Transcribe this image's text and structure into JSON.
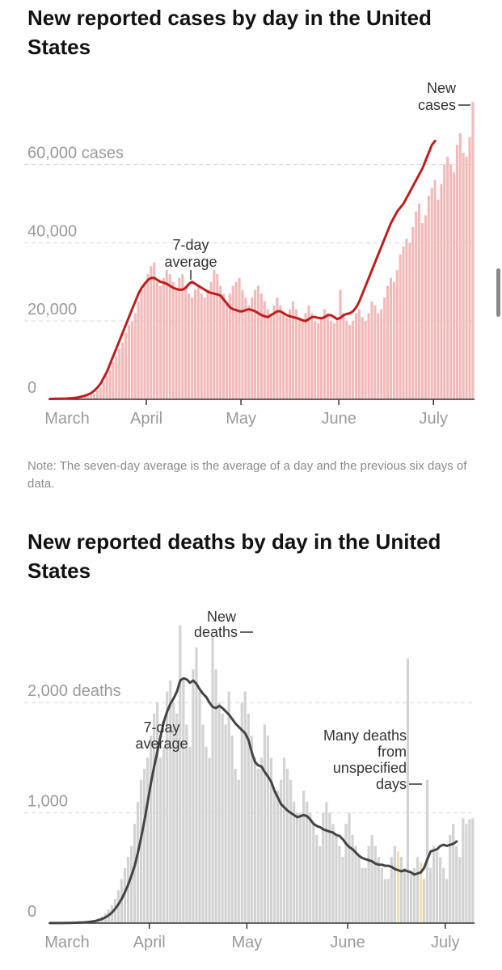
{
  "cases_chart": {
    "title": "New reported cases by day in the United States",
    "note": "Note: The seven-day average is the average of a day and the previous six days of data.",
    "y_tick_labels": [
      "60,000 cases",
      "40,000",
      "20,000",
      "0"
    ],
    "x_tick_labels": [
      "March",
      "April",
      "May",
      "June",
      "July"
    ],
    "annotation_new": [
      "New",
      "cases"
    ],
    "annotation_avg": [
      "7-day",
      "average"
    ],
    "colors": {
      "bar": "#f2b9b9",
      "line": "#bf1e1e",
      "grid": "#d8d8d8",
      "axis": "#333333"
    }
  },
  "deaths_chart": {
    "title": "New reported deaths by day in the United States",
    "y_tick_labels": [
      "2,000 deaths",
      "1,000",
      "0"
    ],
    "x_tick_labels": [
      "March",
      "April",
      "May",
      "June",
      "July"
    ],
    "annotation_new": [
      "New",
      "deaths"
    ],
    "annotation_avg": [
      "7-day",
      "average"
    ],
    "annotation_unspecified": [
      "Many deaths",
      "from",
      "unspecified",
      "days"
    ],
    "colors": {
      "bar": "#d3d3d3",
      "highlight": "#f5deb0",
      "line": "#444444",
      "grid": "#d8d8d8",
      "axis": "#333333"
    }
  },
  "chart_data": [
    {
      "type": "bar",
      "title": "New reported cases by day in the United States",
      "start_date": "2020-03-01",
      "end_date": "2020-07-15",
      "ylim": [
        0,
        76000
      ],
      "yticks": [
        0,
        20000,
        40000,
        60000
      ],
      "series": [
        {
          "name": "New cases",
          "type": "bar",
          "values": [
            10,
            20,
            30,
            40,
            60,
            80,
            100,
            150,
            200,
            300,
            450,
            600,
            800,
            1100,
            1500,
            2200,
            3000,
            4500,
            6000,
            7500,
            9500,
            11000,
            13000,
            14500,
            17000,
            19000,
            20000,
            22000,
            25000,
            28000,
            30000,
            32000,
            34000,
            35000,
            30000,
            29000,
            31000,
            33000,
            32000,
            30000,
            28000,
            31000,
            32000,
            29000,
            27000,
            26000,
            28000,
            29000,
            27000,
            26000,
            28000,
            30000,
            33000,
            32000,
            29000,
            27000,
            25000,
            27000,
            29000,
            30000,
            31000,
            28000,
            26000,
            24000,
            26000,
            28000,
            29000,
            27000,
            25000,
            23000,
            22000,
            24000,
            26000,
            24000,
            22000,
            21000,
            23000,
            25000,
            23000,
            21000,
            20000,
            22000,
            24000,
            22000,
            20000,
            19500,
            21000,
            23000,
            22000,
            20000,
            19500,
            21000,
            28000,
            22000,
            20000,
            19000,
            20000,
            22000,
            23000,
            21000,
            20000,
            22000,
            25000,
            24000,
            22000,
            23000,
            26000,
            29000,
            31000,
            30000,
            33000,
            37000,
            39000,
            41000,
            40000,
            44000,
            48000,
            50000,
            45000,
            47000,
            52000,
            54000,
            56000,
            51000,
            55000,
            60000,
            62000,
            60000,
            58000,
            65000,
            68000,
            63000,
            62000,
            67000,
            76000
          ]
        },
        {
          "name": "7-day average",
          "type": "line",
          "values": [
            100,
            120,
            140,
            160,
            180,
            200,
            250,
            300,
            400,
            500,
            700,
            900,
            1200,
            1600,
            2200,
            3000,
            4000,
            5500,
            7000,
            9000,
            11000,
            13000,
            15000,
            17000,
            19000,
            21000,
            23000,
            25000,
            27000,
            28500,
            29500,
            30500,
            31000,
            31000,
            30500,
            30000,
            29800,
            29500,
            29000,
            28500,
            28200,
            28000,
            28000,
            28500,
            29500,
            30000,
            29500,
            29000,
            28500,
            28000,
            27500,
            27200,
            27000,
            26800,
            26500,
            25500,
            24500,
            23500,
            23000,
            22800,
            22500,
            22500,
            22800,
            23000,
            22800,
            22500,
            22000,
            21500,
            21200,
            21000,
            21500,
            22000,
            22500,
            22500,
            22000,
            21500,
            21200,
            21000,
            20800,
            20500,
            20200,
            20000,
            20500,
            21000,
            21000,
            20800,
            20700,
            21000,
            21500,
            21500,
            21000,
            20500,
            20800,
            21500,
            21800,
            22000,
            22500,
            23500,
            25000,
            27000,
            29000,
            31000,
            33000,
            35000,
            37000,
            39000,
            41000,
            43000,
            45000,
            46500,
            48000,
            49000,
            50000,
            51500,
            53000,
            54500,
            56000,
            57500,
            59000,
            61000,
            63000,
            65000,
            66000
          ]
        }
      ]
    },
    {
      "type": "bar",
      "title": "New reported deaths by day in the United States",
      "start_date": "2020-03-01",
      "end_date": "2020-07-15",
      "ylim": [
        0,
        2800
      ],
      "yticks": [
        0,
        1000,
        2000
      ],
      "series": [
        {
          "name": "New deaths",
          "type": "bar",
          "values": [
            1,
            1,
            1,
            1,
            2,
            2,
            3,
            3,
            4,
            5,
            8,
            10,
            15,
            20,
            30,
            45,
            60,
            90,
            120,
            160,
            220,
            300,
            400,
            500,
            600,
            700,
            900,
            1100,
            1300,
            1400,
            1500,
            1700,
            1900,
            2000,
            1500,
            1600,
            2100,
            2200,
            2000,
            1900,
            2700,
            2200,
            1800,
            1600,
            2300,
            2500,
            2100,
            1800,
            1600,
            1500,
            2600,
            2300,
            2000,
            1900,
            1800,
            2100,
            1700,
            1400,
            1300,
            2000,
            2100,
            1900,
            1700,
            1500,
            1400,
            1500,
            1800,
            1700,
            1500,
            1200,
            1200,
            1300,
            1500,
            1400,
            1300,
            1100,
            1000,
            1000,
            1200,
            1100,
            1000,
            900,
            800,
            700,
            1000,
            1100,
            1000,
            900,
            800,
            700,
            600,
            900,
            1000,
            800,
            700,
            600,
            500,
            500,
            700,
            800,
            700,
            600,
            500,
            400,
            400,
            600,
            700,
            650,
            600,
            500,
            2400,
            450,
            500,
            600,
            550,
            400,
            1300,
            500,
            700,
            650,
            600,
            500,
            400,
            800,
            900,
            700,
            600,
            950,
            900,
            940,
            950
          ]
        },
        {
          "name": "7-day average",
          "type": "line",
          "values": [
            1,
            1,
            1,
            1,
            1,
            2,
            2,
            3,
            4,
            5,
            6,
            8,
            11,
            15,
            20,
            28,
            38,
            52,
            70,
            95,
            130,
            170,
            220,
            280,
            350,
            430,
            520,
            640,
            780,
            930,
            1100,
            1270,
            1420,
            1560,
            1700,
            1830,
            1920,
            1990,
            2040,
            2100,
            2200,
            2220,
            2210,
            2180,
            2200,
            2170,
            2120,
            2080,
            2050,
            2000,
            1960,
            1950,
            1970,
            1950,
            1920,
            1890,
            1850,
            1810,
            1780,
            1750,
            1720,
            1660,
            1550,
            1460,
            1430,
            1420,
            1370,
            1330,
            1280,
            1200,
            1140,
            1080,
            1050,
            1020,
            1000,
            980,
            960,
            970,
            980,
            970,
            940,
            900,
            880,
            870,
            850,
            840,
            830,
            820,
            800,
            790,
            760,
            720,
            690,
            670,
            640,
            610,
            590,
            580,
            570,
            560,
            540,
            530,
            530,
            520,
            520,
            510,
            490,
            480,
            470,
            480,
            470,
            460,
            440,
            450,
            460,
            500,
            580,
            650,
            660,
            670,
            700,
            710,
            700,
            710,
            720,
            740
          ]
        }
      ],
      "highlighted_days_index": [
        107,
        114
      ]
    }
  ]
}
